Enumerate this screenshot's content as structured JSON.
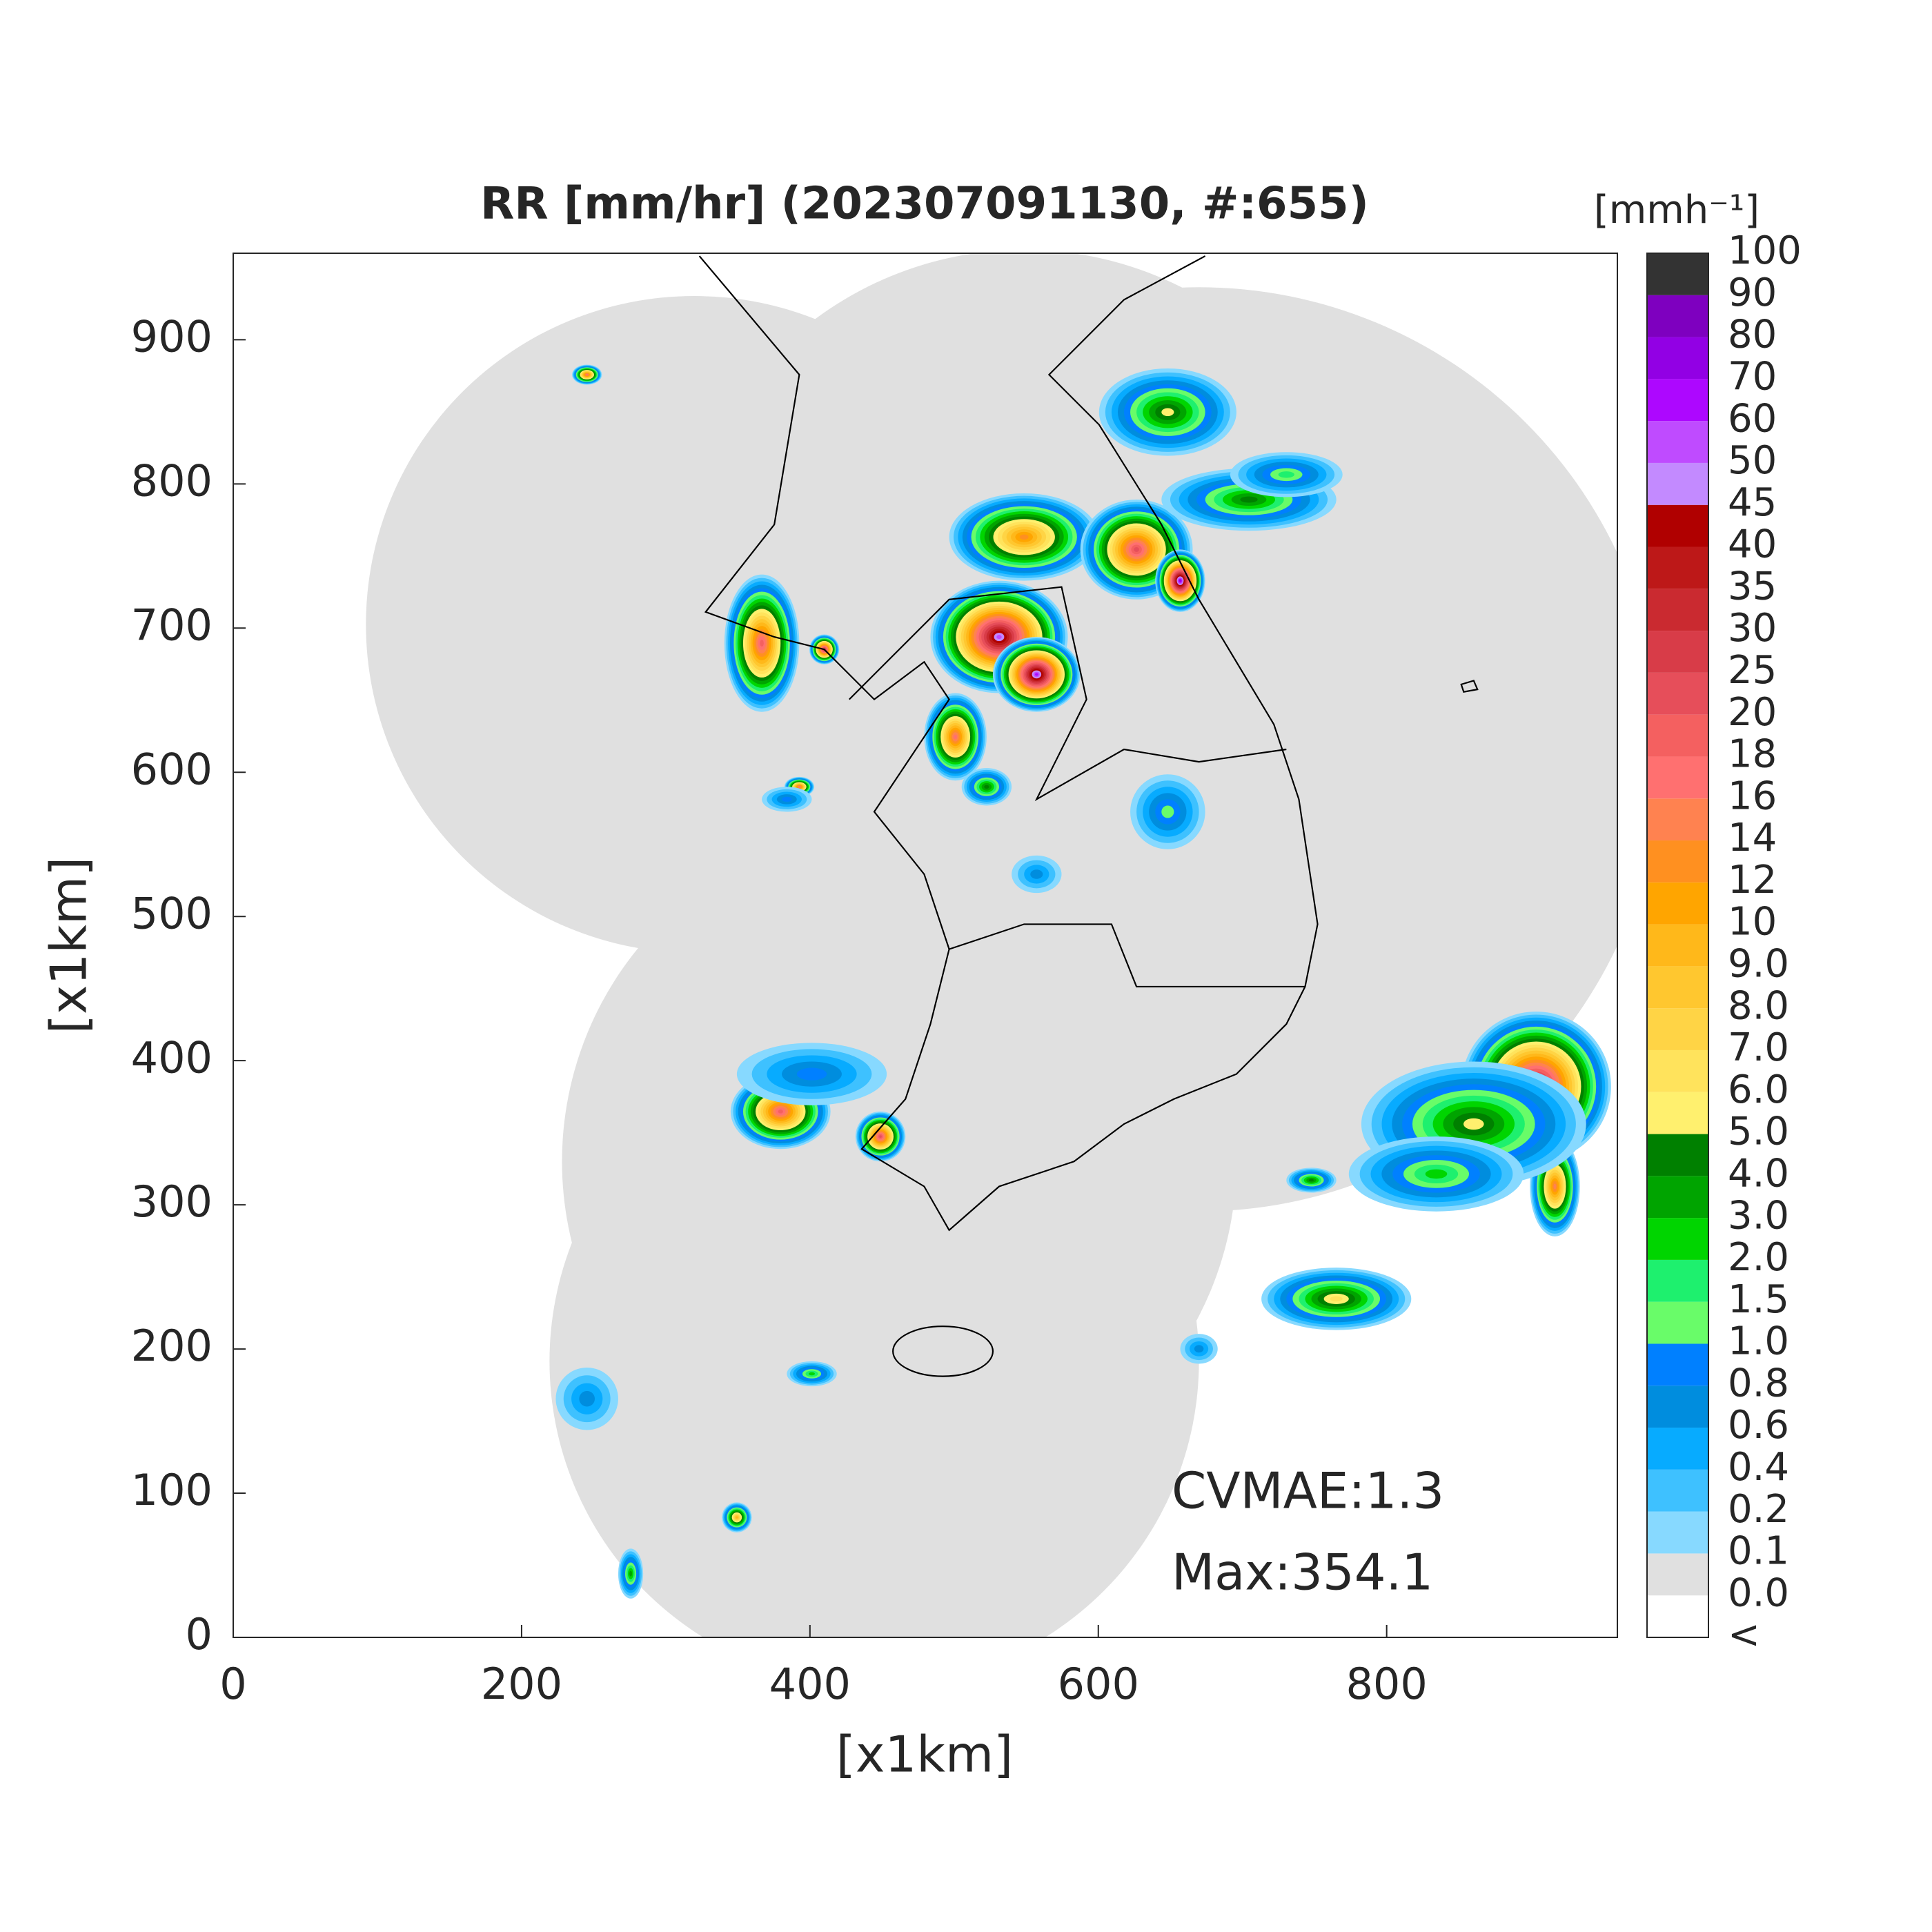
{
  "chart_data": {
    "type": "radar-map",
    "title": "RR [mm/hr] (202307091130, #:655)",
    "xlabel": "[x1km]",
    "ylabel": "[x1km]",
    "xlim": [
      0,
      960
    ],
    "ylim": [
      0,
      960
    ],
    "xticks": [
      0,
      200,
      400,
      600,
      800
    ],
    "yticks": [
      0,
      100,
      200,
      300,
      400,
      500,
      600,
      700,
      800,
      900
    ],
    "annotations": [
      "CVMAE:1.3",
      "Max:354.1"
    ],
    "colorbar": {
      "label": "[mmh⁻¹]",
      "ticks": [
        "<",
        "0.0",
        "0.1",
        "0.2",
        "0.4",
        "0.6",
        "0.8",
        "1.0",
        "1.5",
        "2.0",
        "3.0",
        "4.0",
        "5.0",
        "6.0",
        "7.0",
        "8.0",
        "9.0",
        "10",
        "12",
        "14",
        "16",
        "18",
        "20",
        "25",
        "30",
        "35",
        "40",
        "45",
        "50",
        "60",
        "70",
        "80",
        "90",
        "100"
      ],
      "colors": [
        "#ffffff",
        "#e0e0e0",
        "#87d9ff",
        "#3ec1ff",
        "#07abff",
        "#008dde",
        "#0080ff",
        "#69fc69",
        "#1ef06e",
        "#00d500",
        "#00a400",
        "#008000",
        "#fff06e",
        "#ffe35c",
        "#ffd445",
        "#ffc72f",
        "#ffb81a",
        "#ffa500",
        "#ff9020",
        "#ff8250",
        "#ff7070",
        "#f46060",
        "#e64e5a",
        "#d83c48",
        "#ca2a30",
        "#bd1818",
        "#b00000",
        "#c38aff",
        "#bf4bff",
        "#ad07ff",
        "#9200e4",
        "#7e00bf",
        "#333333"
      ]
    }
  }
}
